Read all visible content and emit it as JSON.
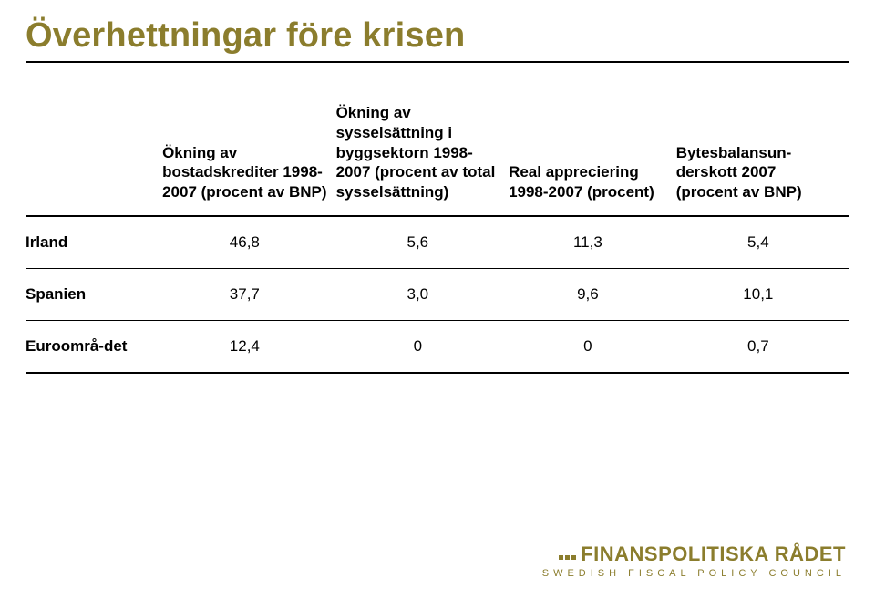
{
  "title": "Överhettningar före krisen",
  "headers": {
    "c1": "Ökning av bostadskrediter 1998-2007 (procent av BNP)",
    "c2": "Ökning av sysselsättning i byggsektorn 1998-2007 (procent av total sysselsättning)",
    "c3": "Real appreciering 1998-2007 (procent)",
    "c4": "Bytesbalansun-derskott 2007 (procent av BNP)"
  },
  "rows": [
    {
      "label": "Irland",
      "c1": "46,8",
      "c2": "5,6",
      "c3": "11,3",
      "c4": "5,4"
    },
    {
      "label": "Spanien",
      "c1": "37,7",
      "c2": "3,0",
      "c3": "9,6",
      "c4": "10,1"
    },
    {
      "label": "Euroområ-det",
      "c1": "12,4",
      "c2": "0",
      "c3": "0",
      "c4": "0,7"
    }
  ],
  "colors": {
    "accent": "#8b7d2d",
    "text": "#000000",
    "bg": "#ffffff",
    "rule": "#000000"
  },
  "logo": {
    "main": "FINANSPOLITISKA RÅDET",
    "sub": "SWEDISH FISCAL POLICY COUNCIL"
  }
}
